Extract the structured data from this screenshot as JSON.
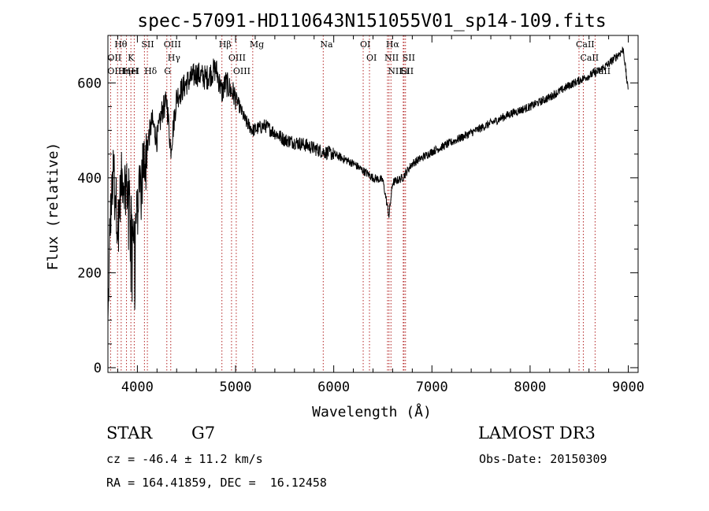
{
  "chart_data": {
    "type": "line",
    "title": "spec-57091-HD110643N151055V01_sp14-109.fits",
    "xlabel": "Wavelength (Å)",
    "ylabel": "Flux (relative)",
    "xlim": [
      3700,
      9100
    ],
    "ylim": [
      -10,
      700
    ],
    "xticks": [
      4000,
      5000,
      6000,
      7000,
      8000,
      9000
    ],
    "yticks": [
      0,
      200,
      400,
      600
    ],
    "spectrum_anchors": {
      "x": [
        3700,
        3720,
        3760,
        3800,
        3840,
        3880,
        3930,
        3968,
        4000,
        4050,
        4100,
        4150,
        4200,
        4250,
        4300,
        4340,
        4400,
        4500,
        4600,
        4700,
        4800,
        4861,
        4900,
        5000,
        5100,
        5175,
        5300,
        5500,
        5700,
        5890,
        6000,
        6100,
        6200,
        6300,
        6400,
        6500,
        6563,
        6600,
        6700,
        6800,
        7000,
        7200,
        7400,
        7600,
        7800,
        8000,
        8200,
        8400,
        8500,
        8600,
        8700,
        8800,
        8900,
        8950,
        9000
      ],
      "y": [
        80,
        300,
        420,
        300,
        400,
        390,
        350,
        280,
        330,
        420,
        470,
        520,
        480,
        540,
        560,
        460,
        570,
        600,
        620,
        610,
        630,
        580,
        600,
        570,
        520,
        500,
        510,
        480,
        470,
        455,
        450,
        440,
        430,
        415,
        400,
        395,
        320,
        390,
        400,
        430,
        455,
        475,
        495,
        515,
        535,
        550,
        570,
        595,
        605,
        615,
        625,
        640,
        660,
        670,
        580
      ]
    },
    "spectral_lines": [
      {
        "label": "Hθ",
        "wavelength": 3798
      },
      {
        "label": "OII",
        "wavelength": 3727
      },
      {
        "label": "OIII",
        "wavelength": 3727
      },
      {
        "label": "Hη",
        "wavelength": 3835
      },
      {
        "label": "HeI",
        "wavelength": 3889
      },
      {
        "label": "K",
        "wavelength": 3934
      },
      {
        "label": "H",
        "wavelength": 3968
      },
      {
        "label": "SII",
        "wavelength": 4072
      },
      {
        "label": "Hδ",
        "wavelength": 4102
      },
      {
        "label": "OIII",
        "wavelength": 4300
      },
      {
        "label": "Hγ",
        "wavelength": 4340
      },
      {
        "label": "G",
        "wavelength": 4304
      },
      {
        "label": "Hβ",
        "wavelength": 4861
      },
      {
        "label": "OIII",
        "wavelength": 4959
      },
      {
        "label": "OIII",
        "wavelength": 5007
      },
      {
        "label": "Mg",
        "wavelength": 5175
      },
      {
        "label": "Na",
        "wavelength": 5893
      },
      {
        "label": "OI",
        "wavelength": 6300
      },
      {
        "label": "OI",
        "wavelength": 6364
      },
      {
        "label": "Hα",
        "wavelength": 6563
      },
      {
        "label": "NII",
        "wavelength": 6548
      },
      {
        "label": "NII",
        "wavelength": 6583
      },
      {
        "label": "SII",
        "wavelength": 6716
      },
      {
        "label": "SII",
        "wavelength": 6731
      },
      {
        "label": "Li",
        "wavelength": 6708
      },
      {
        "label": "CaII",
        "wavelength": 8498
      },
      {
        "label": "CaII",
        "wavelength": 8542
      },
      {
        "label": "CaII",
        "wavelength": 8662
      }
    ]
  },
  "info": {
    "object_class": "STAR",
    "subclass": "G7",
    "survey": "LAMOST DR3",
    "redshift": "cz = -46.4 ± 11.2 km/s",
    "obs_date": "Obs-Date: 20150309",
    "coords": "RA = 164.41859, DEC =  16.12458"
  },
  "colors": {
    "spectrum": "#000000",
    "line_marker": "#b22222",
    "axes": "#000000"
  }
}
